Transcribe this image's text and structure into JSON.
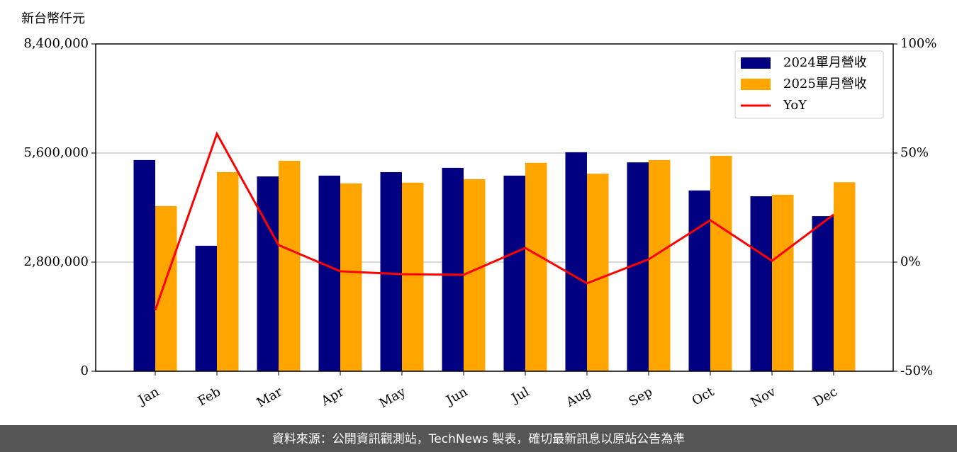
{
  "chart_data": {
    "type": "bar",
    "y_label": "新台幣仟元",
    "categories": [
      "Jan",
      "Feb",
      "Mar",
      "Apr",
      "May",
      "Jun",
      "Jul",
      "Aug",
      "Sep",
      "Oct",
      "Nov",
      "Dec"
    ],
    "series": [
      {
        "name": "2024單月營收",
        "type": "bar",
        "color": "#000080",
        "values": [
          5420000,
          3220000,
          5000000,
          5020000,
          5110000,
          5220000,
          5020000,
          5620000,
          5360000,
          4640000,
          4490000,
          3980000
        ]
      },
      {
        "name": "2025單月營收",
        "type": "bar",
        "color": "#ffa500",
        "values": [
          4240000,
          5110000,
          5400000,
          4820000,
          4840000,
          4930000,
          5350000,
          5070000,
          5420000,
          5530000,
          4530000,
          4850000
        ]
      },
      {
        "name": "YoY",
        "type": "line",
        "axis": "y2",
        "color": "#ff0000",
        "values": [
          -22,
          58.8,
          7.8,
          -4.2,
          -5.5,
          -5.8,
          6.5,
          -9.7,
          1.3,
          19.2,
          0.6,
          21.8
        ]
      }
    ],
    "ylim": [
      0,
      8400000
    ],
    "yticks": [
      0,
      {
        "value": 2800000,
        "label": "2,800,000"
      },
      {
        "value": 5600000,
        "label": "5,600,000"
      },
      {
        "value": 8400000,
        "label": "8,400,000"
      }
    ],
    "y2lim": [
      -50,
      100
    ],
    "y2ticks": [
      {
        "value": -50,
        "label": "-50%"
      },
      {
        "value": 0,
        "label": "0%"
      },
      {
        "value": 50,
        "label": "50%"
      },
      {
        "value": 100,
        "label": "100%"
      }
    ],
    "grid": true,
    "legend": "upper right"
  },
  "footer": "資料來源：公開資訊觀測站，TechNews 製表，確切最新訊息以原站公告為準"
}
